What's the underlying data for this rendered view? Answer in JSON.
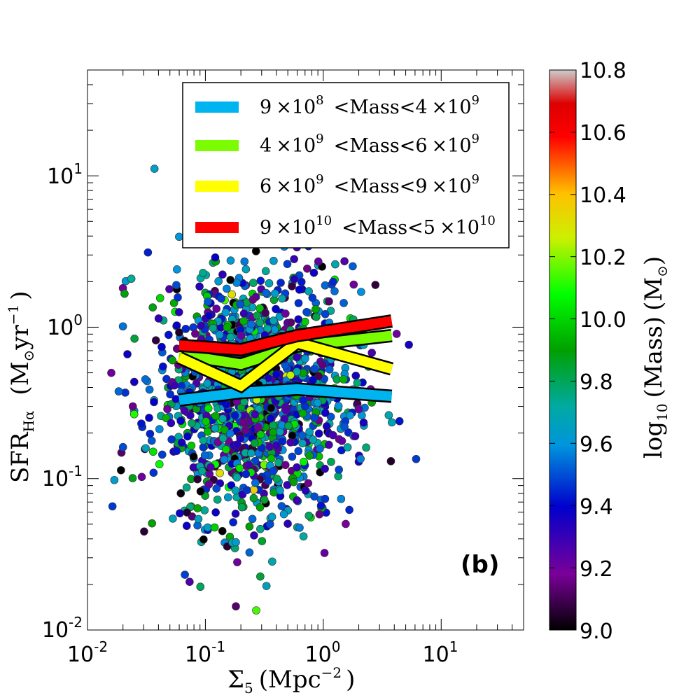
{
  "chart_data": {
    "type": "scatter",
    "panel_label": "(b)",
    "x_axis": {
      "label": "Σ",
      "label_sub": "5",
      "label_units_open": "(Mpc",
      "label_units_exp": "−2",
      "label_units_close": ")",
      "scale": "log",
      "range": [
        0.01,
        50
      ],
      "ticks": [
        {
          "value": 0.01,
          "base": "10",
          "exp": "-2"
        },
        {
          "value": 0.1,
          "base": "10",
          "exp": "-1"
        },
        {
          "value": 1,
          "base": "10",
          "exp": "0"
        },
        {
          "value": 10,
          "base": "10",
          "exp": "1"
        }
      ]
    },
    "y_axis": {
      "label": "SFR",
      "label_sub": "Hα",
      "label_units_open": "(M",
      "label_units_sun_sub": "⊙",
      "label_units_mid": "yr",
      "label_units_exp": "−1",
      "label_units_close": ")",
      "scale": "log",
      "range": [
        0.01,
        50
      ],
      "ticks": [
        {
          "value": 0.01,
          "base": "10",
          "exp": "-2"
        },
        {
          "value": 0.1,
          "base": "10",
          "exp": "-1"
        },
        {
          "value": 1,
          "base": "10",
          "exp": "0"
        },
        {
          "value": 10,
          "base": "10",
          "exp": "1"
        }
      ]
    },
    "colorbar": {
      "label": "log",
      "label_sub": "10",
      "label_rest": "(Mass)",
      "label_units_open": "(M",
      "label_units_sun_sub": "⊙",
      "label_units_close": ")",
      "range": [
        9.0,
        10.8
      ],
      "ticks": [
        "9.0",
        "9.2",
        "9.4",
        "9.6",
        "9.8",
        "10.0",
        "10.2",
        "10.4",
        "10.6",
        "10.8"
      ]
    },
    "legend": {
      "placement": "top-right",
      "entries": [
        {
          "color": "#00b4f0",
          "coef1": "9",
          "exp1": "8",
          "coef2": "4",
          "exp2": "9",
          "mid": "<Mass<"
        },
        {
          "color": "#7cfc00",
          "coef1": "4",
          "exp1": "9",
          "coef2": "6",
          "exp2": "9",
          "mid": "<Mass<"
        },
        {
          "color": "#ffff00",
          "coef1": "6",
          "exp1": "9",
          "coef2": "9",
          "exp2": "9",
          "mid": "<Mass<"
        },
        {
          "color": "#ff0000",
          "coef1": "9",
          "exp1": "10",
          "coef2": "5",
          "exp2": "10",
          "mid": "<Mass<"
        }
      ]
    },
    "series": [
      {
        "color": "#00b4f0",
        "x": [
          0.06,
          0.2,
          0.6,
          3.8
        ],
        "y": [
          0.33,
          0.37,
          0.39,
          0.35
        ]
      },
      {
        "color": "#7cfc00",
        "x": [
          0.06,
          0.2,
          0.6,
          3.8
        ],
        "y": [
          0.66,
          0.57,
          0.75,
          0.88
        ]
      },
      {
        "color": "#ffff00",
        "x": [
          0.06,
          0.2,
          0.6,
          3.8
        ],
        "y": [
          0.63,
          0.41,
          0.79,
          0.53
        ]
      },
      {
        "color": "#ff0000",
        "x": [
          0.06,
          0.2,
          0.6,
          3.8
        ],
        "y": [
          0.76,
          0.71,
          0.88,
          1.1
        ]
      }
    ],
    "scatter": {
      "n_points": 1500,
      "x_logmean": -0.6,
      "x_logsd": 0.42,
      "x_range": [
        0.015,
        45
      ],
      "y_logmean": -0.45,
      "y_logsd": 0.42,
      "y_range": [
        0.01,
        20
      ],
      "mass_mean": 9.55,
      "mass_sd": 0.28,
      "mass_range": [
        9.0,
        10.75
      ],
      "marker_color_by": "log10 mass"
    }
  }
}
